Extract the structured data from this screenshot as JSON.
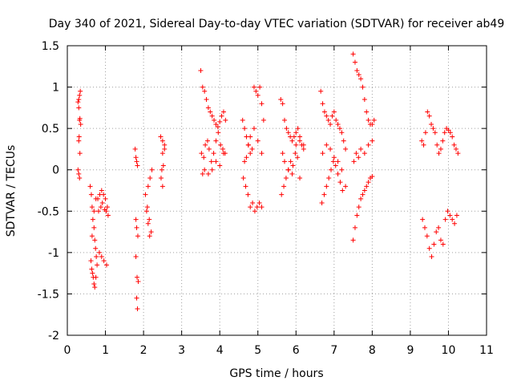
{
  "chart_data": {
    "type": "scatter",
    "title": "Day 340 of 2021, Sidereal Day-to-day VTEC variation (SDTVAR) for receiver ab49",
    "xlabel": "GPS time / hours",
    "ylabel": "SDTVAR / TECUs",
    "xlim": [
      0,
      11
    ],
    "ylim": [
      -2,
      1.5
    ],
    "x_ticks": [
      "0",
      "1",
      "2",
      "3",
      "4",
      "5",
      "6",
      "7",
      "8",
      "9",
      "10",
      "11"
    ],
    "y_ticks": [
      "-2",
      "-1.5",
      "-1",
      "-0.5",
      "0",
      "0.5",
      "1",
      "1.5"
    ],
    "grid": true,
    "marker": "+",
    "color": "#ff0000",
    "series_segments": [
      {
        "x": [
          0.28,
          0.3,
          0.32,
          0.34,
          0.3,
          0.32,
          0.33,
          0.35,
          0.3,
          0.31,
          0.33,
          0.28,
          0.3,
          0.32
        ],
        "y": [
          0.82,
          0.85,
          0.9,
          0.95,
          0.75,
          0.6,
          0.62,
          0.55,
          0.35,
          0.4,
          0.2,
          0.0,
          -0.05,
          -0.1
        ]
      },
      {
        "x": [
          0.6,
          0.63,
          0.65,
          0.67,
          0.7,
          0.72,
          0.74,
          0.76,
          0.62,
          0.64,
          0.66,
          0.68,
          0.7,
          0.72,
          0.75,
          0.78,
          0.65,
          0.7,
          0.75
        ],
        "y": [
          -0.2,
          -0.3,
          -0.45,
          -0.6,
          -0.7,
          -0.85,
          -0.95,
          -1.05,
          -1.1,
          -1.2,
          -1.25,
          -1.3,
          -1.38,
          -1.42,
          -1.3,
          -1.15,
          -0.8,
          -0.5,
          -0.35
        ]
      },
      {
        "x": [
          0.8,
          0.85,
          0.9,
          0.95,
          1.0,
          1.05,
          0.82,
          0.88,
          0.92,
          0.98,
          1.02,
          1.07,
          0.84,
          0.9,
          0.96,
          1.03
        ],
        "y": [
          -0.35,
          -0.3,
          -0.25,
          -0.3,
          -0.35,
          -0.45,
          -0.5,
          -0.45,
          -0.4,
          -0.48,
          -0.5,
          -0.55,
          -1.0,
          -1.05,
          -1.1,
          -1.15
        ]
      },
      {
        "x": [
          1.78,
          1.8,
          1.82,
          1.84,
          1.8,
          1.82,
          1.85,
          1.8,
          1.83,
          1.86,
          1.82,
          1.84
        ],
        "y": [
          0.25,
          0.15,
          0.1,
          0.05,
          -0.6,
          -0.7,
          -0.8,
          -1.05,
          -1.3,
          -1.35,
          -1.55,
          -1.68
        ]
      },
      {
        "x": [
          2.05,
          2.1,
          2.15,
          2.2,
          2.12,
          2.17,
          2.22,
          2.08,
          2.12,
          2.16
        ],
        "y": [
          -0.3,
          -0.45,
          -0.6,
          -0.75,
          -0.2,
          -0.1,
          0.0,
          -0.5,
          -0.65,
          -0.8
        ]
      },
      {
        "x": [
          2.45,
          2.5,
          2.55,
          2.5,
          2.55,
          2.48,
          2.52,
          2.46,
          2.5
        ],
        "y": [
          0.4,
          0.35,
          0.3,
          0.2,
          0.25,
          0.0,
          0.05,
          -0.1,
          -0.2
        ]
      },
      {
        "x": [
          3.5,
          3.55,
          3.6,
          3.65,
          3.7,
          3.75,
          3.8,
          3.85,
          3.9,
          3.95,
          4.0,
          4.05,
          4.1,
          4.15,
          3.52,
          3.58,
          3.62,
          3.68,
          3.72,
          3.78,
          3.84,
          3.9,
          3.96,
          4.02,
          4.08,
          4.14,
          3.55,
          3.6,
          3.7,
          3.8,
          3.9,
          4.0,
          4.1
        ],
        "y": [
          1.2,
          1.0,
          0.95,
          0.85,
          0.75,
          0.7,
          0.65,
          0.6,
          0.55,
          0.52,
          0.58,
          0.65,
          0.7,
          0.6,
          0.2,
          0.15,
          0.3,
          0.35,
          0.25,
          0.1,
          0.2,
          0.35,
          0.45,
          0.3,
          0.25,
          0.2,
          -0.05,
          0.0,
          -0.05,
          0.0,
          0.1,
          0.05,
          0.2
        ]
      },
      {
        "x": [
          4.6,
          4.65,
          4.7,
          4.75,
          4.8,
          4.85,
          4.9,
          4.95,
          5.0,
          5.05,
          5.1,
          5.15,
          4.62,
          4.68,
          4.74,
          4.8,
          4.86,
          4.92,
          4.98,
          5.04,
          5.1,
          4.65,
          4.7,
          4.75,
          4.8,
          4.9,
          5.0,
          5.1
        ],
        "y": [
          0.6,
          0.5,
          0.4,
          0.3,
          0.2,
          0.25,
          1.0,
          0.95,
          0.9,
          1.0,
          0.8,
          0.6,
          -0.1,
          -0.2,
          -0.3,
          -0.45,
          -0.4,
          -0.5,
          -0.45,
          -0.4,
          -0.45,
          0.1,
          0.15,
          0.3,
          0.4,
          0.5,
          0.35,
          0.2
        ]
      },
      {
        "x": [
          5.6,
          5.65,
          5.7,
          5.75,
          5.8,
          5.85,
          5.9,
          5.95,
          6.0,
          6.05,
          6.1,
          6.15,
          6.2,
          5.62,
          5.68,
          5.74,
          5.8,
          5.86,
          5.92,
          5.98,
          6.04,
          6.1,
          5.65,
          5.7,
          5.8,
          5.9,
          6.0,
          6.1,
          6.2
        ],
        "y": [
          0.85,
          0.8,
          0.6,
          0.5,
          0.45,
          0.4,
          0.35,
          0.4,
          0.45,
          0.5,
          0.4,
          0.3,
          0.25,
          -0.3,
          -0.2,
          -0.1,
          0.0,
          0.1,
          0.05,
          0.2,
          0.15,
          -0.1,
          0.2,
          0.1,
          0.0,
          -0.05,
          0.3,
          0.35,
          0.3
        ]
      },
      {
        "x": [
          6.65,
          6.7,
          6.75,
          6.8,
          6.85,
          6.9,
          6.95,
          7.0,
          7.05,
          7.1,
          7.15,
          7.2,
          7.25,
          7.3,
          6.68,
          6.74,
          6.8,
          6.86,
          6.92,
          6.98,
          7.04,
          7.1,
          7.16,
          7.22,
          6.7,
          6.8,
          6.9,
          7.0,
          7.1,
          7.2,
          7.3
        ],
        "y": [
          0.95,
          0.8,
          0.7,
          0.65,
          0.6,
          0.55,
          0.65,
          0.7,
          0.6,
          0.55,
          0.5,
          0.45,
          0.35,
          0.25,
          -0.4,
          -0.3,
          -0.2,
          -0.1,
          0.0,
          0.1,
          0.05,
          -0.05,
          -0.15,
          -0.25,
          0.2,
          0.3,
          0.25,
          0.15,
          0.1,
          0.0,
          -0.2
        ]
      },
      {
        "x": [
          7.5,
          7.55,
          7.6,
          7.65,
          7.7,
          7.75,
          7.8,
          7.85,
          7.9,
          7.95,
          8.0,
          8.05,
          7.5,
          7.55,
          7.6,
          7.65,
          7.7,
          7.75,
          7.8,
          7.85,
          7.9,
          7.95,
          8.0,
          7.52,
          7.58,
          7.64,
          7.7,
          7.8,
          7.9,
          8.0
        ],
        "y": [
          1.4,
          1.3,
          1.2,
          1.15,
          1.1,
          1.0,
          0.85,
          0.7,
          0.6,
          0.55,
          0.55,
          0.6,
          -0.85,
          -0.7,
          -0.55,
          -0.45,
          -0.35,
          -0.3,
          -0.25,
          -0.2,
          -0.15,
          -0.1,
          -0.08,
          0.1,
          0.2,
          0.15,
          0.25,
          0.2,
          0.3,
          0.35
        ]
      },
      {
        "x": [
          9.3,
          9.35,
          9.4,
          9.45,
          9.5,
          9.55,
          9.6,
          9.65,
          9.7,
          9.75,
          9.8,
          9.85,
          9.9,
          9.95,
          10.0,
          10.05,
          10.1,
          10.15,
          10.2,
          10.25,
          9.32,
          9.38,
          9.44,
          9.5,
          9.56,
          9.62,
          9.68,
          9.74,
          9.8,
          9.86,
          9.92,
          9.98,
          10.04,
          10.1,
          10.16,
          10.22
        ],
        "y": [
          0.35,
          0.3,
          0.45,
          0.7,
          0.65,
          0.55,
          0.5,
          0.45,
          0.3,
          0.2,
          0.25,
          0.35,
          0.45,
          0.5,
          0.48,
          0.45,
          0.4,
          0.3,
          0.25,
          0.2,
          -0.6,
          -0.7,
          -0.8,
          -0.95,
          -1.05,
          -0.9,
          -0.75,
          -0.7,
          -0.85,
          -0.9,
          -0.6,
          -0.5,
          -0.55,
          -0.6,
          -0.65,
          -0.55
        ]
      }
    ]
  }
}
